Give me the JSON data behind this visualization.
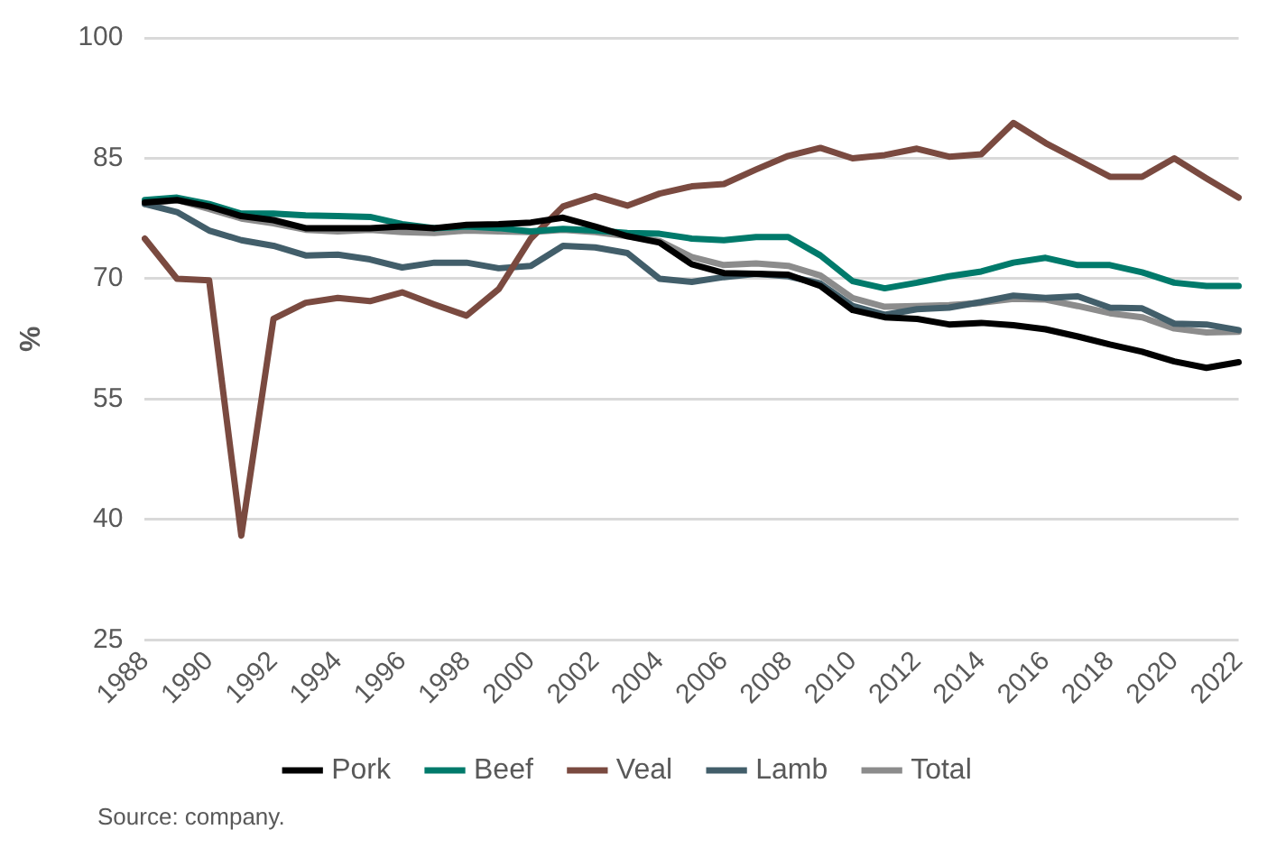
{
  "chart_data": {
    "type": "line",
    "ylabel": "%",
    "categories": [
      "1988",
      null,
      "1990",
      null,
      "1992",
      null,
      "1994",
      null,
      "1996",
      null,
      "1998",
      null,
      "2000",
      null,
      "2002",
      null,
      "2004",
      null,
      "2006",
      null,
      "2008",
      null,
      "2010",
      null,
      "2012",
      null,
      "2014",
      null,
      "2016",
      null,
      "2018",
      null,
      "2020",
      null,
      "2022"
    ],
    "series": [
      {
        "name": "Pork",
        "color": "#000000",
        "values": [
          79.5,
          79.8,
          79,
          77.8,
          77.3,
          76.3,
          76.3,
          76.3,
          76.5,
          76.3,
          76.7,
          76.8,
          77,
          77.6,
          76.5,
          75.3,
          74.5,
          71.8,
          70.7,
          70.6,
          70.5,
          69.1,
          66.1,
          65.2,
          65.0,
          64.3,
          64.5,
          64.2,
          63.7,
          62.8,
          61.8,
          60.9,
          59.7,
          58.9,
          59.6
        ]
      },
      {
        "name": "Beef",
        "color": "#007a6b",
        "values": [
          79.8,
          80.1,
          79.3,
          78.1,
          78.1,
          77.9,
          77.8,
          77.7,
          76.8,
          76.3,
          76.5,
          76.3,
          75.9,
          76.2,
          76,
          75.7,
          75.6,
          75,
          74.8,
          75.2,
          75.2,
          72.9,
          69.7,
          68.8,
          69.5,
          70.3,
          70.9,
          72,
          72.6,
          71.7,
          71.7,
          70.8,
          69.5,
          69.1,
          69.1
        ]
      },
      {
        "name": "Veal",
        "color": "#7a4a40",
        "values": [
          75,
          70,
          69.8,
          38,
          65,
          67,
          67.6,
          67.2,
          68.3,
          66.8,
          65.4,
          68.7,
          75,
          79,
          80.3,
          79.1,
          80.6,
          81.5,
          81.8,
          83.6,
          85.3,
          86.3,
          85,
          85.4,
          86.2,
          85.2,
          85.5,
          89.4,
          86.9,
          84.8,
          82.7,
          82.7,
          85,
          82.5,
          80.1
        ]
      },
      {
        "name": "Lamb",
        "color": "#425e6a",
        "values": [
          79.3,
          78.3,
          76,
          74.8,
          74.1,
          72.9,
          73,
          72.4,
          71.4,
          72,
          72,
          71.3,
          71.6,
          74.1,
          73.9,
          73.2,
          70,
          69.6,
          70.2,
          70.6,
          70.3,
          69.4,
          66.6,
          65.5,
          66.2,
          66.4,
          67.1,
          67.9,
          67.6,
          67.8,
          66.4,
          66.3,
          64.4,
          64.3,
          63.6
        ]
      },
      {
        "name": "Total",
        "color": "#8c8c8c",
        "values": [
          79.3,
          79.8,
          78.7,
          77.5,
          76.9,
          76.1,
          75.9,
          76.1,
          75.8,
          75.7,
          76,
          75.9,
          75.8,
          76.1,
          75.8,
          75.3,
          74.7,
          72.7,
          71.7,
          71.9,
          71.6,
          70.4,
          67.6,
          66.5,
          66.6,
          66.7,
          67,
          67.5,
          67.4,
          66.6,
          65.7,
          65.2,
          63.8,
          63.3,
          63.4
        ]
      }
    ],
    "ylim": [
      25,
      100
    ],
    "yticks": [
      25,
      40,
      55,
      70,
      85,
      100
    ],
    "grid": "y",
    "legend": "bottom",
    "marker": "none",
    "line_style": "solid",
    "annotations": [
      "Source: company."
    ]
  }
}
